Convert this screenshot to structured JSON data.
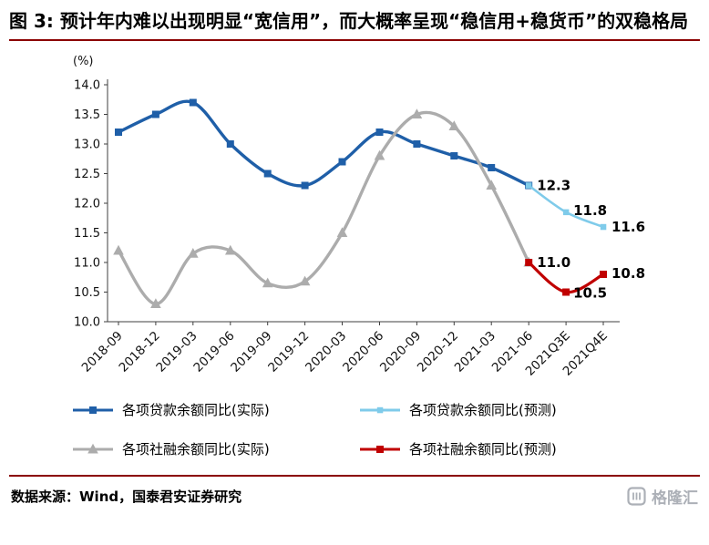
{
  "header": {
    "title": "图 3: 预计年内难以出现明显“宽信用”，而大概率呈现“稳信用+稳货币”的双稳格局"
  },
  "chart_data": {
    "type": "line",
    "unit_label": "(%)",
    "categories": [
      "2018-09",
      "2018-12",
      "2019-03",
      "2019-06",
      "2019-09",
      "2019-12",
      "2020-03",
      "2020-06",
      "2020-09",
      "2020-12",
      "2021-03",
      "2021-06",
      "2021Q3E",
      "2021Q4E"
    ],
    "ylim": [
      10.0,
      14.0
    ],
    "ytick_step": 0.5,
    "grid": false,
    "legend_position": "bottom",
    "series": [
      {
        "name": "各项贷款余额同比(实际)",
        "color": "#1F5FA8",
        "marker": "square",
        "values": [
          13.2,
          13.5,
          13.7,
          13.0,
          12.5,
          12.3,
          12.7,
          13.2,
          13.0,
          12.8,
          12.6,
          12.3,
          null,
          null
        ]
      },
      {
        "name": "各项贷款余额同比(预测)",
        "color": "#7FCBEA",
        "marker": "square",
        "values": [
          null,
          null,
          null,
          null,
          null,
          null,
          null,
          null,
          null,
          null,
          null,
          12.3,
          11.85,
          11.6
        ],
        "data_labels": [
          {
            "index": 11,
            "text": "12.3"
          },
          {
            "index": 12,
            "text": "11.8"
          },
          {
            "index": 13,
            "text": "11.6"
          }
        ]
      },
      {
        "name": "各项社融余额同比(实际)",
        "color": "#ACACAC",
        "marker": "triangle",
        "values": [
          11.2,
          10.3,
          11.15,
          11.2,
          10.65,
          10.68,
          11.5,
          12.8,
          13.5,
          13.3,
          12.3,
          11.0,
          null,
          null
        ]
      },
      {
        "name": "各项社融余额同比(预测)",
        "color": "#C00000",
        "marker": "square",
        "values": [
          null,
          null,
          null,
          null,
          null,
          null,
          null,
          null,
          null,
          null,
          null,
          11.0,
          10.5,
          10.8
        ],
        "data_labels": [
          {
            "index": 11,
            "text": "11.0"
          },
          {
            "index": 12,
            "text": "10.5"
          },
          {
            "index": 13,
            "text": "10.8"
          }
        ]
      }
    ]
  },
  "footer": {
    "source": "数据来源：Wind，国泰君安证券研究",
    "logo_text": "格隆汇"
  }
}
